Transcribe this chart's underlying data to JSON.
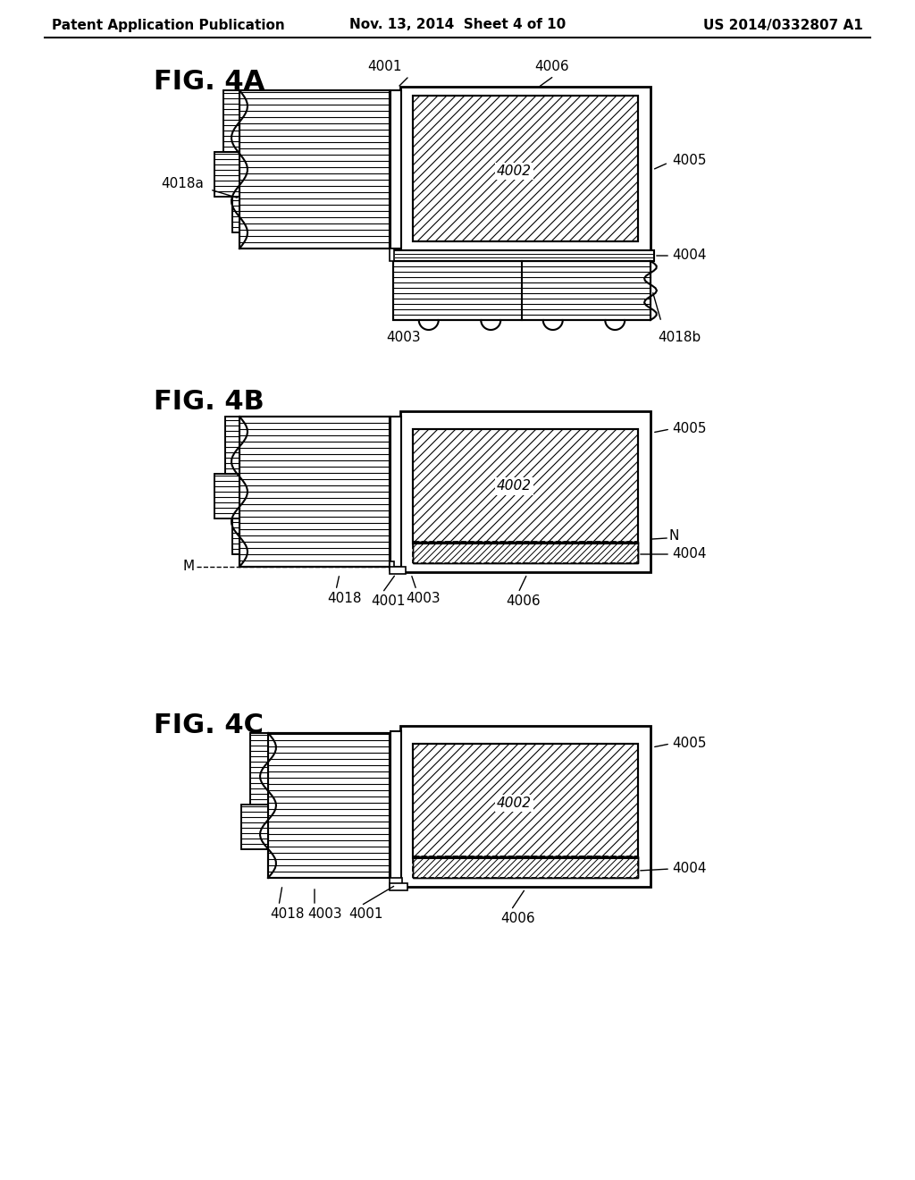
{
  "header_left": "Patent Application Publication",
  "header_mid": "Nov. 13, 2014  Sheet 4 of 10",
  "header_right": "US 2014/0332807 A1",
  "fig4a_label": "FIG. 4A",
  "fig4b_label": "FIG. 4B",
  "fig4c_label": "FIG. 4C",
  "background_color": "#ffffff",
  "line_color": "#000000"
}
